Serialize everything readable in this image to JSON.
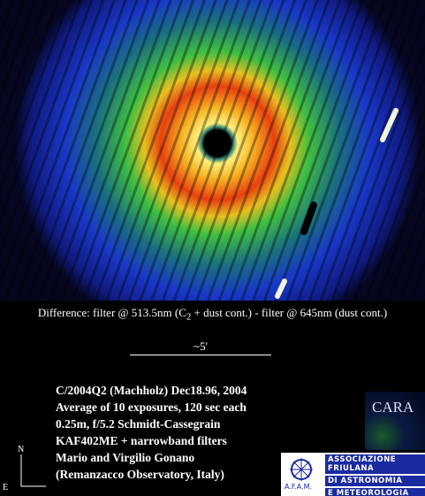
{
  "caption": {
    "before": "Difference: filter @ 513.5nm (C",
    "subscript": "2",
    "after": " + dust cont.) - filter @ 645nm (dust cont.)"
  },
  "scale_label": "~5'",
  "info_lines": [
    "C/2004Q2 (Machholz) Dec18.96, 2004",
    "Average of 10 exposures, 120 sec each",
    "0.25m, f/5.2 Schmidt-Cassegrain",
    "KAF402ME + narrowband filters",
    "Mario and Virgilio Gonano",
    "(Remanzacco Observatory, Italy)"
  ],
  "compass": {
    "north": "N",
    "east": "E"
  },
  "logos": {
    "cara": "CARA",
    "afam_short": "A.F.A.M.",
    "afam_lines": [
      "Associazione Friulana",
      "di Astronomia",
      "e Meteorologia"
    ]
  }
}
